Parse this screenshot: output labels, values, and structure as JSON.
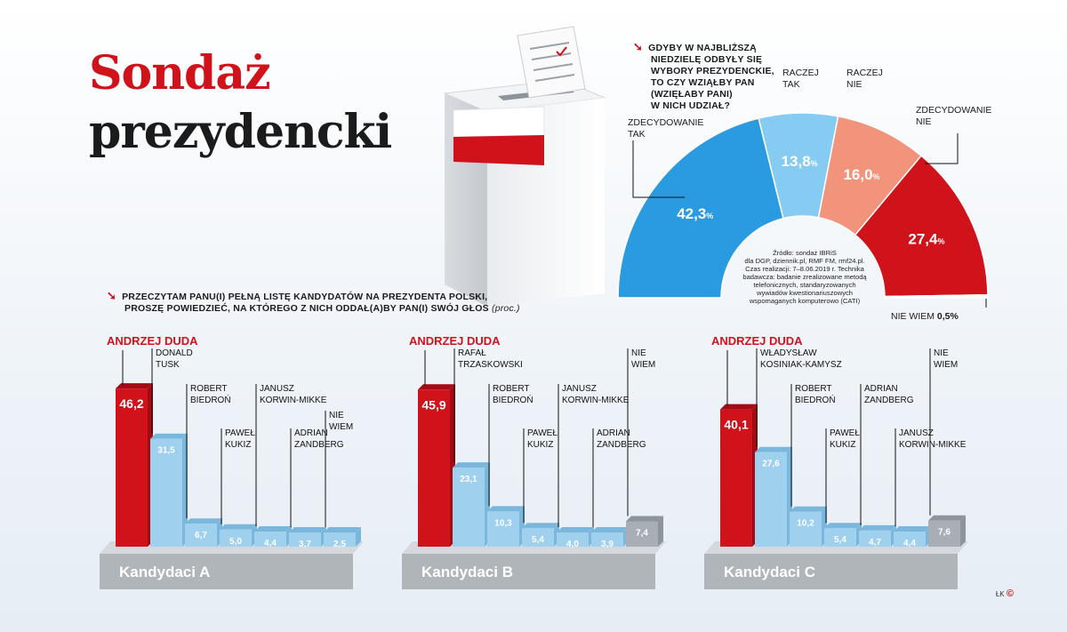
{
  "title_line1": "Sondaż",
  "title_line2": "prezydencki",
  "poll_question": "Gdyby w najbliższą niedzielę odbyły się wybory prezydenckie, to czy wziąłby Pan (wzięłaby Pani) w nich udział?",
  "poll_question_lines": [
    "Gdyby w najbliższą",
    "niedzielę odbyły się",
    "wybory prezydenckie,",
    "to czy wziąłby Pan",
    "(wzięłaby Pani)",
    "w nich udział?"
  ],
  "candidates_question_line1": "Przeczytam Panu(i) pełną listę kandydatów na prezydenta Polski,",
  "candidates_question_line2": "proszę powiedzieć, na którego z nich oddał(a)by Pan(i) swój głos",
  "candidates_question_unit": "(proc.)",
  "source_note_lines": [
    "Źródło: sondaż IBRiS",
    "dla DGP, dziennik.pl, RMF FM, rmf24.pl.",
    "Czas realizacji: 7–8.06.2019 r. Technika",
    "badawcza: badanie zrealizowane metodą",
    "telefonicznych, standaryzowanych",
    "wywiadów kwestionariuszowych",
    "wspomaganych komputerowo (CATI)"
  ],
  "credit": "ŁK",
  "colors": {
    "red": "#d0121b",
    "dark_red": "#a30c14",
    "blue": "#2a9be0",
    "light_blue": "#86cbf2",
    "salmon": "#f2937c",
    "grey": "#a7aeb5",
    "bar_blue": "#9fd0ee"
  },
  "chart_data": [
    {
      "type": "pie",
      "title": "",
      "categories": [
        "ZDECYDOWANIE TAK",
        "RACZEJ TAK",
        "RACZEJ NIE",
        "ZDECYDOWANIE NIE",
        "NIE WIEM"
      ],
      "values": [
        42.3,
        13.8,
        16.0,
        27.4,
        0.5
      ],
      "value_labels": [
        "42,3",
        "13,8",
        "16,0",
        "27,4",
        "0,5"
      ],
      "unit": "%",
      "label_lines": [
        [
          "ZDECYDOWANIE",
          "TAK"
        ],
        [
          "RACZEJ",
          "TAK"
        ],
        [
          "RACZEJ",
          "NIE"
        ],
        [
          "ZDECYDOWANIE",
          "NIE"
        ],
        [
          "NIE WIEM"
        ]
      ],
      "colors": [
        "#2a9be0",
        "#86cbf2",
        "#f2937c",
        "#d0121b",
        "#ffffff"
      ],
      "shape": "semicircle"
    },
    {
      "type": "bar",
      "title": "Kandydaci A",
      "categories": [
        "ANDRZEJ DUDA",
        "DONALD TUSK",
        "ROBERT BIEDROŃ",
        "PAWEŁ KUKIZ",
        "JANUSZ KORWIN-MIKKE",
        "ADRIAN ZANDBERG",
        "NIE WIEM"
      ],
      "label_lines": [
        [
          "ANDRZEJ DUDA"
        ],
        [
          "DONALD",
          "TUSK"
        ],
        [
          "ROBERT",
          "BIEDROŃ"
        ],
        [
          "PAWEŁ",
          "KUKIZ"
        ],
        [
          "JANUSZ",
          "KORWIN-MIKKE"
        ],
        [
          "ADRIAN",
          "ZANDBERG"
        ],
        [
          "NIE",
          "WIEM"
        ]
      ],
      "values": [
        46.2,
        31.5,
        6.7,
        5.0,
        4.4,
        3.7,
        2.5
      ],
      "value_labels": [
        "46,2",
        "31,5",
        "6,7",
        "5,0",
        "4,4",
        "3,7",
        "2,5"
      ],
      "bar_kinds": [
        "red",
        "blue",
        "blue",
        "blue",
        "blue",
        "blue",
        "blue"
      ]
    },
    {
      "type": "bar",
      "title": "Kandydaci B",
      "categories": [
        "ANDRZEJ DUDA",
        "RAFAŁ TRZASKOWSKI",
        "ROBERT BIEDROŃ",
        "PAWEŁ KUKIZ",
        "JANUSZ KORWIN-MIKKE",
        "ADRIAN ZANDBERG",
        "NIE WIEM"
      ],
      "label_lines": [
        [
          "ANDRZEJ DUDA"
        ],
        [
          "RAFAŁ",
          "TRZASKOWSKI"
        ],
        [
          "ROBERT",
          "BIEDROŃ"
        ],
        [
          "PAWEŁ",
          "KUKIZ"
        ],
        [
          "JANUSZ",
          "KORWIN-MIKKE"
        ],
        [
          "ADRIAN",
          "ZANDBERG"
        ],
        [
          "NIE",
          "WIEM"
        ]
      ],
      "values": [
        45.9,
        23.1,
        10.3,
        5.4,
        4.0,
        3.9,
        7.4
      ],
      "value_labels": [
        "45,9",
        "23,1",
        "10,3",
        "5,4",
        "4,0",
        "3,9",
        "7,4"
      ],
      "bar_kinds": [
        "red",
        "blue",
        "blue",
        "blue",
        "blue",
        "blue",
        "grey"
      ]
    },
    {
      "type": "bar",
      "title": "Kandydaci C",
      "categories": [
        "ANDRZEJ DUDA",
        "WŁADYSŁAW KOSINIAK-KAMYSZ",
        "ROBERT BIEDROŃ",
        "PAWEŁ KUKIZ",
        "ADRIAN ZANDBERG",
        "JANUSZ KORWIN-MIKKE",
        "NIE WIEM"
      ],
      "label_lines": [
        [
          "ANDRZEJ DUDA"
        ],
        [
          "WŁADYSŁAW",
          "KOSINIAK-KAMYSZ"
        ],
        [
          "ROBERT",
          "BIEDROŃ"
        ],
        [
          "PAWEŁ",
          "KUKIZ"
        ],
        [
          "ADRIAN",
          "ZANDBERG"
        ],
        [
          "JANUSZ",
          "KORWIN-MIKKE"
        ],
        [
          "NIE",
          "WIEM"
        ]
      ],
      "values": [
        40.1,
        27.6,
        10.2,
        5.4,
        4.7,
        4.4,
        7.6
      ],
      "value_labels": [
        "40,1",
        "27,6",
        "10,2",
        "5,4",
        "4,7",
        "4,4",
        "7,6"
      ],
      "bar_kinds": [
        "red",
        "blue",
        "blue",
        "blue",
        "blue",
        "blue",
        "grey"
      ]
    }
  ]
}
